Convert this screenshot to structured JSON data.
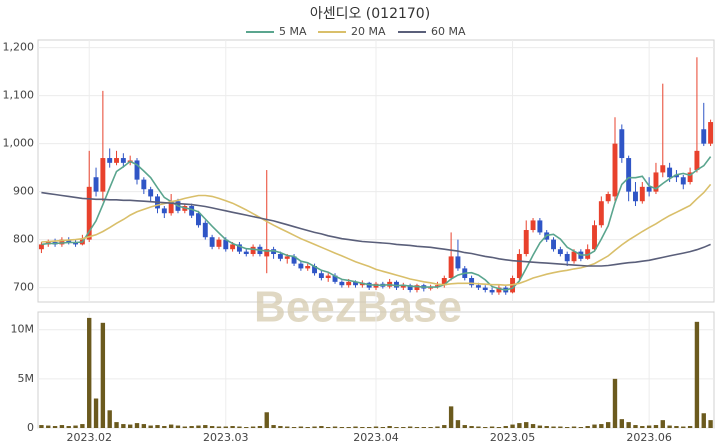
{
  "chart_data": {
    "type": "candlestick",
    "title": "아센디오 (012170)",
    "watermark": "BeezBase",
    "grid": true,
    "up_color": "#e8412c",
    "down_color": "#2f55c6",
    "categories": [
      null,
      null,
      null,
      null,
      null,
      null,
      null,
      "2023.02",
      null,
      null,
      null,
      null,
      null,
      null,
      null,
      null,
      null,
      null,
      null,
      null,
      null,
      null,
      null,
      null,
      null,
      null,
      null,
      "2023.03",
      null,
      null,
      null,
      null,
      null,
      null,
      null,
      null,
      null,
      null,
      null,
      null,
      null,
      null,
      null,
      null,
      null,
      null,
      null,
      null,
      null,
      "2023.04",
      null,
      null,
      null,
      null,
      null,
      null,
      null,
      null,
      null,
      null,
      null,
      null,
      null,
      null,
      null,
      null,
      null,
      null,
      null,
      "2023.05",
      null,
      null,
      null,
      null,
      null,
      null,
      null,
      null,
      null,
      null,
      null,
      null,
      null,
      null,
      null,
      null,
      null,
      null,
      null,
      "2023.06",
      null,
      null,
      null,
      null,
      null,
      null,
      null,
      null,
      null
    ],
    "open": [
      780,
      790,
      795,
      790,
      800,
      795,
      790,
      800,
      930,
      900,
      970,
      960,
      970,
      960,
      965,
      925,
      905,
      890,
      865,
      855,
      880,
      860,
      870,
      855,
      835,
      805,
      785,
      800,
      780,
      790,
      775,
      770,
      785,
      765,
      780,
      770,
      760,
      765,
      750,
      740,
      745,
      730,
      720,
      725,
      712,
      705,
      712,
      705,
      710,
      700,
      708,
      702,
      712,
      700,
      705,
      695,
      705,
      698,
      702,
      705,
      720,
      765,
      740,
      720,
      705,
      700,
      695,
      690,
      700,
      690,
      720,
      770,
      820,
      840,
      815,
      800,
      780,
      770,
      755,
      775,
      760,
      780,
      830,
      880,
      890,
      1030,
      970,
      900,
      880,
      910,
      900,
      940,
      950,
      935,
      930,
      920,
      945,
      1030,
      1000
    ],
    "high": [
      795,
      800,
      802,
      805,
      805,
      800,
      810,
      985,
      950,
      1110,
      990,
      985,
      980,
      975,
      970,
      930,
      910,
      895,
      870,
      895,
      885,
      875,
      875,
      860,
      840,
      810,
      805,
      805,
      795,
      795,
      780,
      790,
      790,
      945,
      785,
      775,
      770,
      770,
      755,
      750,
      750,
      735,
      730,
      730,
      715,
      718,
      715,
      715,
      712,
      712,
      712,
      718,
      715,
      710,
      708,
      708,
      708,
      706,
      712,
      725,
      815,
      800,
      745,
      725,
      710,
      705,
      700,
      705,
      705,
      725,
      780,
      840,
      845,
      845,
      820,
      805,
      785,
      775,
      780,
      780,
      790,
      840,
      890,
      900,
      1055,
      1040,
      975,
      920,
      920,
      930,
      960,
      1125,
      960,
      945,
      935,
      950,
      1180,
      1085,
      1050
    ],
    "low": [
      772,
      785,
      785,
      785,
      790,
      785,
      788,
      795,
      890,
      880,
      950,
      955,
      950,
      955,
      915,
      895,
      880,
      855,
      845,
      850,
      855,
      855,
      845,
      825,
      800,
      780,
      780,
      775,
      775,
      770,
      765,
      765,
      765,
      730,
      760,
      755,
      750,
      745,
      735,
      735,
      725,
      715,
      712,
      708,
      700,
      700,
      700,
      700,
      695,
      695,
      698,
      698,
      695,
      695,
      690,
      690,
      692,
      694,
      698,
      700,
      715,
      735,
      715,
      700,
      695,
      690,
      685,
      685,
      685,
      688,
      715,
      765,
      815,
      810,
      795,
      775,
      765,
      745,
      750,
      755,
      758,
      775,
      825,
      875,
      880,
      960,
      880,
      870,
      875,
      890,
      895,
      930,
      920,
      920,
      905,
      915,
      940,
      995,
      995
    ],
    "close": [
      790,
      795,
      790,
      800,
      795,
      790,
      800,
      910,
      900,
      970,
      960,
      970,
      960,
      965,
      925,
      905,
      890,
      865,
      855,
      880,
      860,
      870,
      850,
      830,
      805,
      785,
      800,
      780,
      790,
      775,
      770,
      785,
      770,
      780,
      770,
      760,
      765,
      750,
      740,
      745,
      730,
      720,
      725,
      712,
      705,
      712,
      705,
      710,
      700,
      708,
      702,
      712,
      700,
      705,
      695,
      705,
      698,
      702,
      705,
      720,
      765,
      740,
      720,
      705,
      700,
      695,
      690,
      700,
      690,
      720,
      770,
      820,
      840,
      815,
      800,
      780,
      770,
      755,
      775,
      760,
      780,
      830,
      880,
      895,
      1000,
      970,
      900,
      880,
      910,
      900,
      940,
      955,
      930,
      930,
      915,
      940,
      985,
      1000,
      1045
    ],
    "ylim": [
      670,
      1216
    ],
    "yticks": [
      700,
      800,
      900,
      {
        "value": 1000,
        "label": "1,000"
      },
      {
        "value": 1100,
        "label": "1,100"
      },
      {
        "value": 1200,
        "label": "1,200"
      }
    ],
    "series": [
      {
        "name": "5 MA",
        "color": "#5aa58e",
        "values": [
          790,
          792,
          792,
          793,
          794,
          794,
          795,
          817,
          839,
          873,
          908,
          942,
          952,
          963,
          956,
          943,
          929,
          908,
          888,
          879,
          870,
          866,
          863,
          858,
          843,
          828,
          814,
          800,
          792,
          786,
          781,
          780,
          778,
          776,
          777,
          773,
          767,
          765,
          755,
          752,
          744,
          736,
          732,
          724,
          717,
          715,
          712,
          709,
          706,
          705,
          705,
          706,
          704,
          705,
          703,
          702,
          701,
          701,
          701,
          706,
          718,
          726,
          730,
          731,
          726,
          716,
          702,
          698,
          695,
          699,
          714,
          740,
          768,
          793,
          809,
          811,
          801,
          784,
          776,
          768,
          768,
          776,
          801,
          829,
          877,
          915,
          929,
          929,
          932,
          912,
          906,
          917,
          927,
          935,
          938,
          934,
          945,
          954,
          973
        ]
      },
      {
        "name": "20 MA",
        "color": "#d9bf6a",
        "values": [
          795,
          796,
          797,
          798,
          799,
          800,
          802,
          806,
          810,
          817,
          825,
          834,
          842,
          851,
          858,
          863,
          868,
          872,
          875,
          879,
          882,
          886,
          889,
          892,
          892,
          890,
          886,
          881,
          876,
          869,
          862,
          854,
          846,
          838,
          830,
          823,
          816,
          809,
          802,
          796,
          790,
          784,
          778,
          772,
          766,
          760,
          754,
          749,
          744,
          738,
          734,
          730,
          726,
          722,
          718,
          715,
          712,
          710,
          707,
          706,
          708,
          709,
          709,
          709,
          708,
          707,
          706,
          706,
          705,
          706,
          709,
          714,
          720,
          724,
          728,
          731,
          734,
          736,
          739,
          741,
          745,
          750,
          758,
          766,
          778,
          789,
          799,
          808,
          817,
          825,
          833,
          842,
          850,
          857,
          864,
          871,
          885,
          898,
          915
        ]
      },
      {
        "name": "60 MA",
        "color": "#5a5f7a",
        "values": [
          898,
          896,
          894,
          892,
          890,
          888,
          886,
          885,
          884,
          884,
          883,
          883,
          882,
          882,
          881,
          880,
          879,
          878,
          877,
          876,
          875,
          874,
          873,
          871,
          869,
          866,
          863,
          860,
          857,
          854,
          851,
          848,
          845,
          842,
          839,
          835,
          831,
          827,
          823,
          819,
          815,
          812,
          808,
          805,
          802,
          800,
          798,
          796,
          795,
          794,
          793,
          792,
          790,
          789,
          788,
          786,
          785,
          784,
          782,
          780,
          778,
          776,
          773,
          771,
          768,
          765,
          763,
          760,
          758,
          756,
          755,
          754,
          753,
          752,
          751,
          750,
          749,
          748,
          747,
          746,
          745,
          745,
          745,
          746,
          748,
          750,
          752,
          753,
          755,
          757,
          760,
          763,
          766,
          769,
          772,
          775,
          779,
          784,
          790
        ]
      }
    ],
    "volume": {
      "color": "#6b5a1e",
      "ylim": [
        0,
        11800000
      ],
      "yticks": [
        0,
        {
          "value": 5000000,
          "label": "5M"
        },
        {
          "value": 10000000,
          "label": "10M"
        }
      ],
      "values": [
        300000,
        250000,
        200000,
        300000,
        200000,
        250000,
        400000,
        11200000,
        3000000,
        10700000,
        1800000,
        600000,
        400000,
        350000,
        500000,
        400000,
        250000,
        300000,
        200000,
        350000,
        250000,
        150000,
        200000,
        250000,
        300000,
        200000,
        150000,
        150000,
        200000,
        150000,
        100000,
        150000,
        200000,
        1600000,
        300000,
        200000,
        150000,
        100000,
        150000,
        100000,
        150000,
        200000,
        100000,
        150000,
        100000,
        100000,
        150000,
        100000,
        100000,
        150000,
        100000,
        200000,
        100000,
        100000,
        150000,
        100000,
        100000,
        100000,
        150000,
        300000,
        2200000,
        800000,
        300000,
        200000,
        150000,
        100000,
        150000,
        100000,
        200000,
        350000,
        500000,
        600000,
        400000,
        250000,
        200000,
        150000,
        150000,
        100000,
        150000,
        100000,
        200000,
        350000,
        400000,
        600000,
        5000000,
        900000,
        600000,
        300000,
        200000,
        250000,
        300000,
        800000,
        250000,
        200000,
        150000,
        200000,
        10800000,
        1500000,
        800000
      ]
    }
  }
}
